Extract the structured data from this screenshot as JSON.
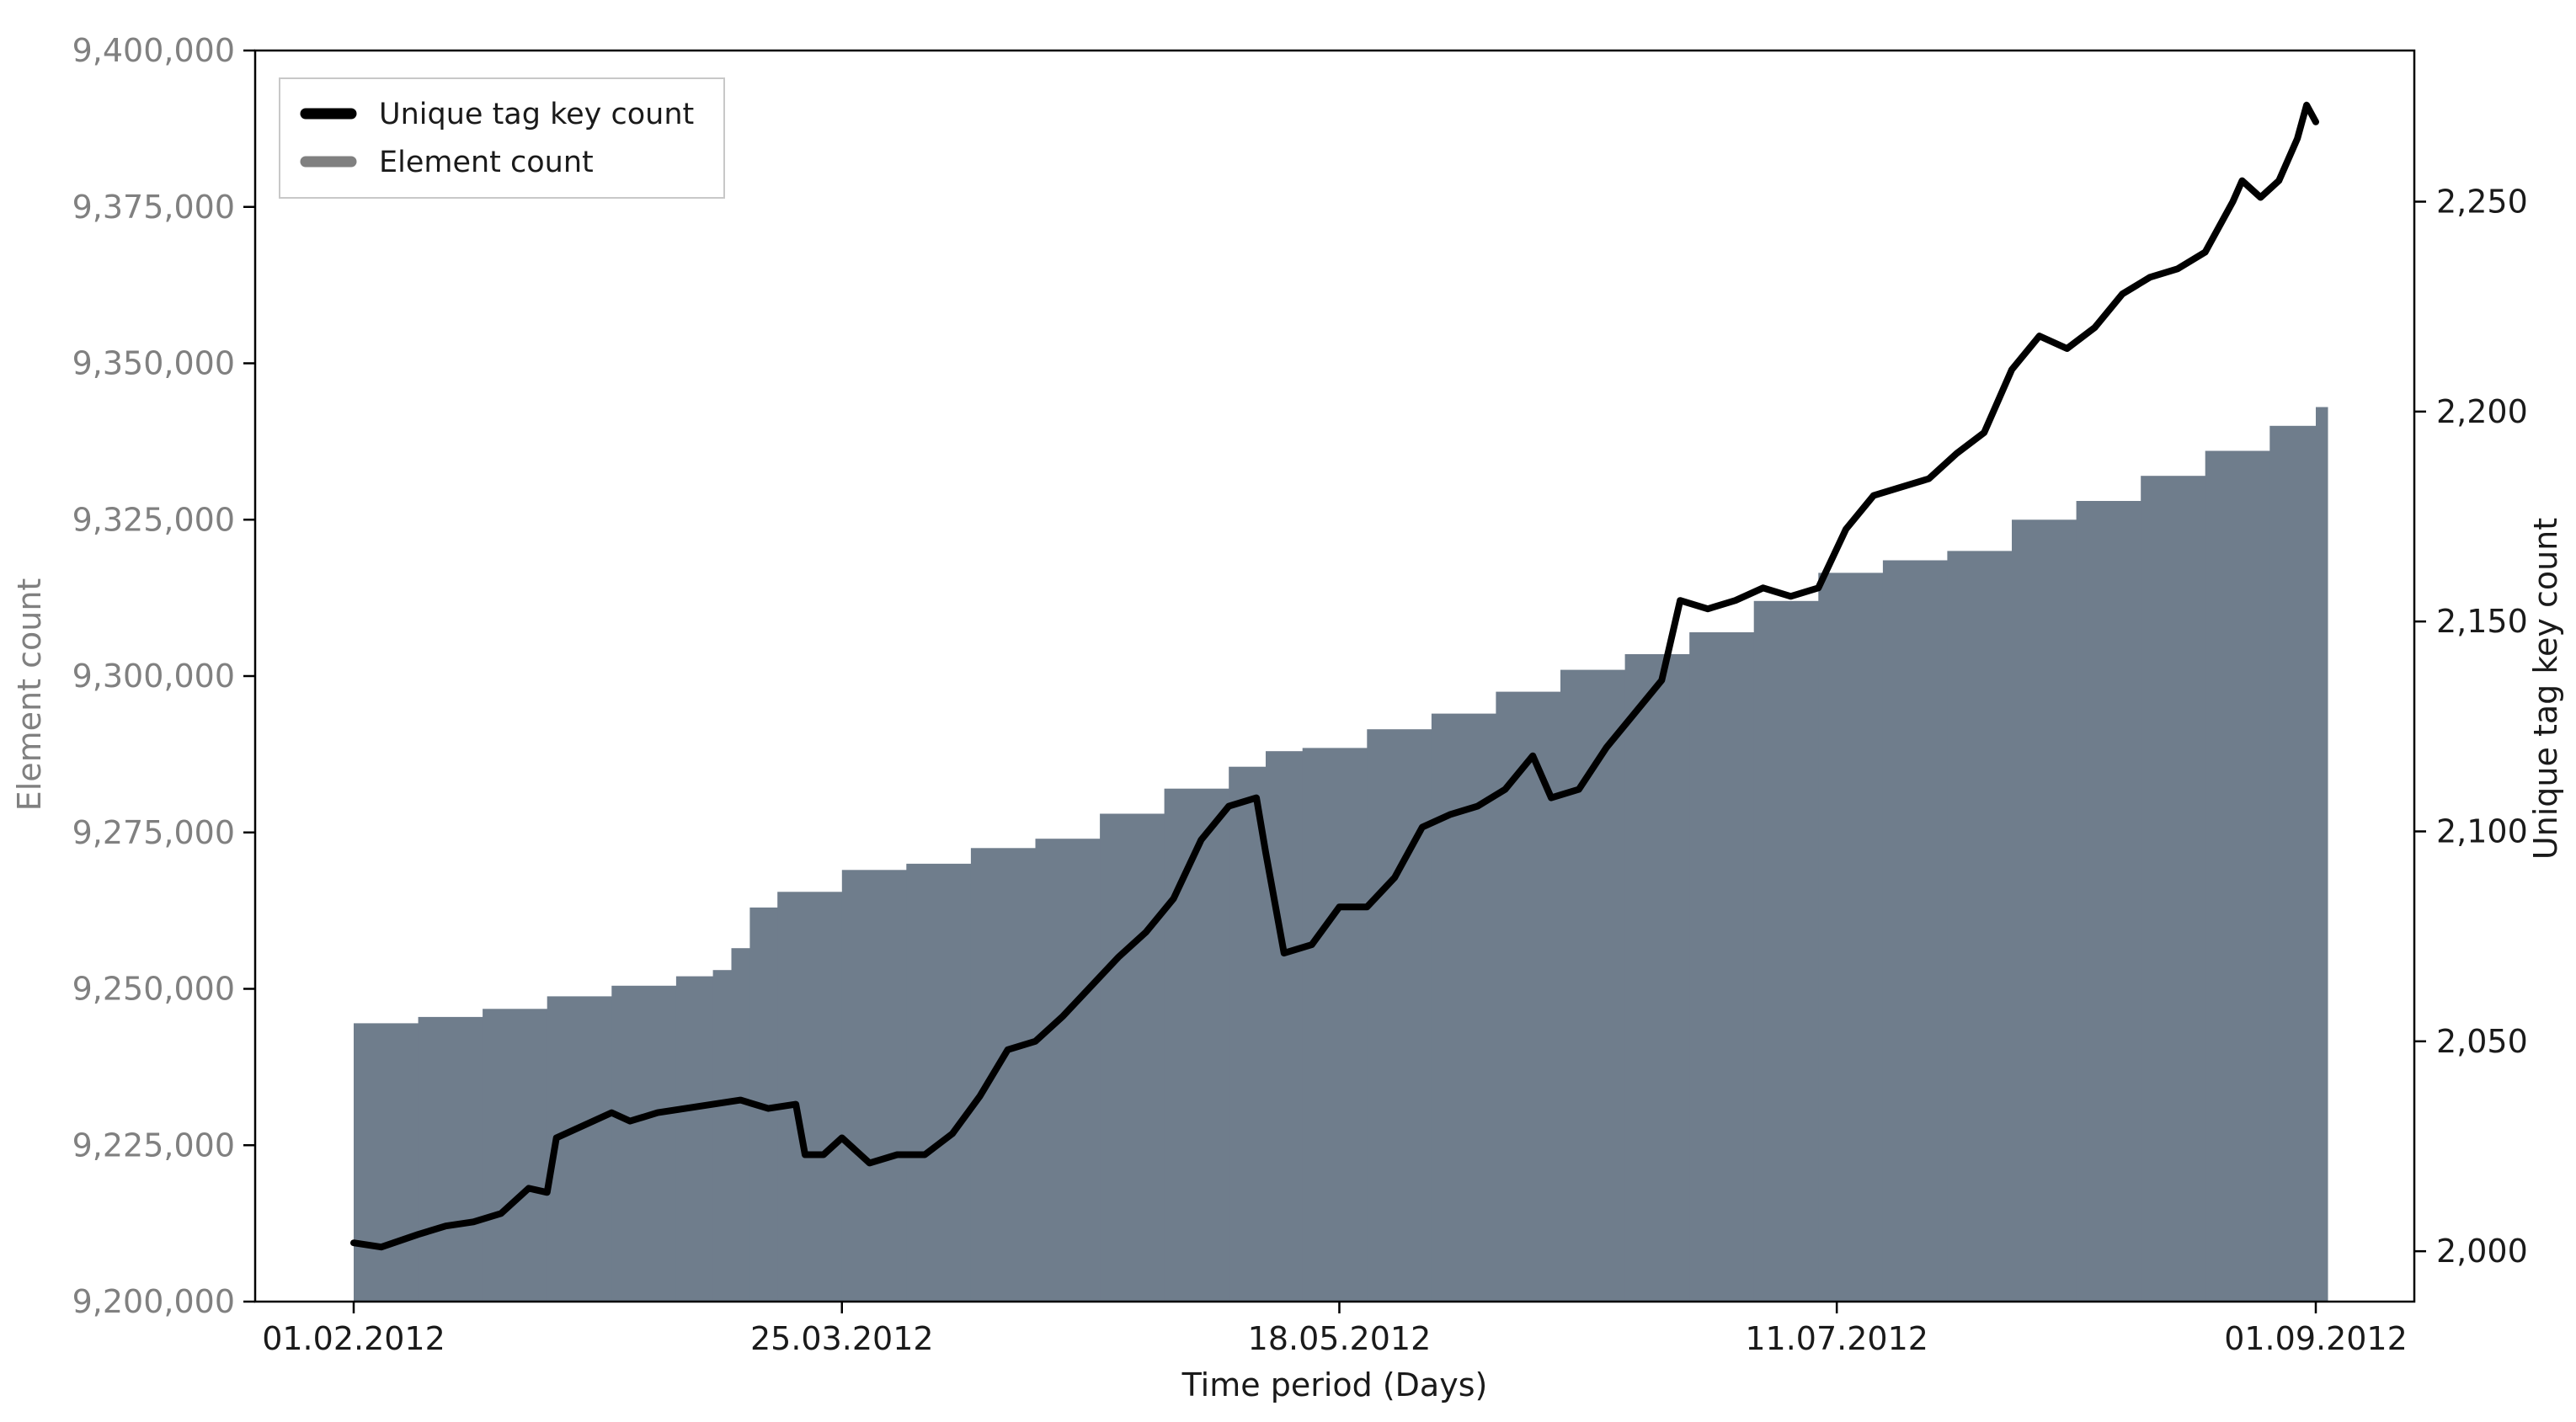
{
  "chart_data": {
    "type": "bar+line",
    "xlabel": "Time period (Days)",
    "x_tick_labels": [
      "01.02.2012",
      "25.03.2012",
      "18.05.2012",
      "11.07.2012",
      "01.09.2012"
    ],
    "x_range": [
      "01.02.2012",
      "01.09.2012"
    ],
    "y_left": {
      "label": "Element count",
      "ylim": [
        9200000,
        9400000
      ],
      "ticks": [
        9200000,
        9225000,
        9250000,
        9275000,
        9300000,
        9325000,
        9350000,
        9375000,
        9400000
      ],
      "tick_labels": [
        "9,200,000",
        "9,225,000",
        "9,250,000",
        "9,275,000",
        "9,300,000",
        "9,325,000",
        "9,350,000",
        "9,375,000",
        "9,400,000"
      ],
      "color": "#808080"
    },
    "y_right": {
      "label": "Unique tag key count",
      "ylim": [
        1988,
        2286
      ],
      "ticks": [
        2000,
        2050,
        2100,
        2150,
        2200,
        2250
      ],
      "tick_labels": [
        "2,000",
        "2,050",
        "2,100",
        "2,150",
        "2,200",
        "2,250"
      ],
      "color": "#1a1a1a"
    },
    "legend": {
      "placement": "top-left",
      "entries": [
        {
          "label": "Unique tag key count",
          "color": "#000000"
        },
        {
          "label": "Element count",
          "color": "#808080"
        }
      ]
    },
    "series": [
      {
        "name": "Element count",
        "type": "bar",
        "axis": "left",
        "color": "#6f7d8c",
        "points": [
          [
            "01.02.2012",
            9244500
          ],
          [
            "08.02.2012",
            9245500
          ],
          [
            "15.02.2012",
            9246800
          ],
          [
            "22.02.2012",
            9248800
          ],
          [
            "29.02.2012",
            9250500
          ],
          [
            "07.03.2012",
            9252000
          ],
          [
            "11.03.2012",
            9253000
          ],
          [
            "13.03.2012",
            9256500
          ],
          [
            "15.03.2012",
            9263000
          ],
          [
            "18.03.2012",
            9265500
          ],
          [
            "25.03.2012",
            9269000
          ],
          [
            "01.04.2012",
            9270000
          ],
          [
            "08.04.2012",
            9272500
          ],
          [
            "15.04.2012",
            9274000
          ],
          [
            "22.04.2012",
            9278000
          ],
          [
            "29.04.2012",
            9282000
          ],
          [
            "06.05.2012",
            9285500
          ],
          [
            "10.05.2012",
            9288000
          ],
          [
            "14.05.2012",
            9288500
          ],
          [
            "21.05.2012",
            9291500
          ],
          [
            "28.05.2012",
            9294000
          ],
          [
            "04.06.2012",
            9297500
          ],
          [
            "11.06.2012",
            9301000
          ],
          [
            "18.06.2012",
            9303500
          ],
          [
            "25.06.2012",
            9307000
          ],
          [
            "02.07.2012",
            9312000
          ],
          [
            "09.07.2012",
            9316500
          ],
          [
            "16.07.2012",
            9318500
          ],
          [
            "23.07.2012",
            9320000
          ],
          [
            "30.07.2012",
            9325000
          ],
          [
            "06.08.2012",
            9328000
          ],
          [
            "13.08.2012",
            9332000
          ],
          [
            "20.08.2012",
            9336000
          ],
          [
            "27.08.2012",
            9340000
          ],
          [
            "01.09.2012",
            9343000
          ]
        ]
      },
      {
        "name": "Unique tag key count",
        "type": "line",
        "axis": "right",
        "color": "#000000",
        "points": [
          [
            "01.02.2012",
            2002
          ],
          [
            "04.02.2012",
            2001
          ],
          [
            "08.02.2012",
            2004
          ],
          [
            "11.02.2012",
            2006
          ],
          [
            "14.02.2012",
            2007
          ],
          [
            "17.02.2012",
            2009
          ],
          [
            "20.02.2012",
            2015
          ],
          [
            "22.02.2012",
            2014
          ],
          [
            "23.02.2012",
            2027
          ],
          [
            "27.02.2012",
            2031
          ],
          [
            "29.02.2012",
            2033
          ],
          [
            "02.03.2012",
            2031
          ],
          [
            "05.03.2012",
            2033
          ],
          [
            "08.03.2012",
            2034
          ],
          [
            "11.03.2012",
            2035
          ],
          [
            "14.03.2012",
            2036
          ],
          [
            "17.03.2012",
            2034
          ],
          [
            "20.03.2012",
            2035
          ],
          [
            "21.03.2012",
            2023
          ],
          [
            "23.03.2012",
            2023
          ],
          [
            "25.03.2012",
            2027
          ],
          [
            "28.03.2012",
            2021
          ],
          [
            "31.03.2012",
            2023
          ],
          [
            "03.04.2012",
            2023
          ],
          [
            "06.04.2012",
            2028
          ],
          [
            "09.04.2012",
            2037
          ],
          [
            "12.04.2012",
            2048
          ],
          [
            "15.04.2012",
            2050
          ],
          [
            "18.04.2012",
            2056
          ],
          [
            "21.04.2012",
            2063
          ],
          [
            "24.04.2012",
            2070
          ],
          [
            "27.04.2012",
            2076
          ],
          [
            "30.04.2012",
            2084
          ],
          [
            "03.05.2012",
            2098
          ],
          [
            "06.05.2012",
            2106
          ],
          [
            "09.05.2012",
            2108
          ],
          [
            "10.05.2012",
            2095
          ],
          [
            "12.05.2012",
            2071
          ],
          [
            "15.05.2012",
            2073
          ],
          [
            "18.05.2012",
            2082
          ],
          [
            "21.05.2012",
            2082
          ],
          [
            "24.05.2012",
            2089
          ],
          [
            "27.05.2012",
            2101
          ],
          [
            "30.05.2012",
            2104
          ],
          [
            "02.06.2012",
            2106
          ],
          [
            "05.06.2012",
            2110
          ],
          [
            "08.06.2012",
            2118
          ],
          [
            "10.06.2012",
            2108
          ],
          [
            "13.06.2012",
            2110
          ],
          [
            "16.06.2012",
            2120
          ],
          [
            "19.06.2012",
            2128
          ],
          [
            "22.06.2012",
            2136
          ],
          [
            "24.06.2012",
            2155
          ],
          [
            "27.06.2012",
            2153
          ],
          [
            "30.06.2012",
            2155
          ],
          [
            "03.07.2012",
            2158
          ],
          [
            "06.07.2012",
            2156
          ],
          [
            "09.07.2012",
            2158
          ],
          [
            "12.07.2012",
            2172
          ],
          [
            "15.07.2012",
            2180
          ],
          [
            "18.07.2012",
            2182
          ],
          [
            "21.07.2012",
            2184
          ],
          [
            "24.07.2012",
            2190
          ],
          [
            "27.07.2012",
            2195
          ],
          [
            "30.07.2012",
            2210
          ],
          [
            "02.08.2012",
            2218
          ],
          [
            "05.08.2012",
            2215
          ],
          [
            "08.08.2012",
            2220
          ],
          [
            "11.08.2012",
            2228
          ],
          [
            "14.08.2012",
            2232
          ],
          [
            "17.08.2012",
            2234
          ],
          [
            "20.08.2012",
            2238
          ],
          [
            "23.08.2012",
            2250
          ],
          [
            "24.08.2012",
            2255
          ],
          [
            "26.08.2012",
            2251
          ],
          [
            "28.08.2012",
            2255
          ],
          [
            "30.08.2012",
            2265
          ],
          [
            "31.08.2012",
            2273
          ],
          [
            "01.09.2012",
            2269
          ]
        ]
      }
    ]
  }
}
